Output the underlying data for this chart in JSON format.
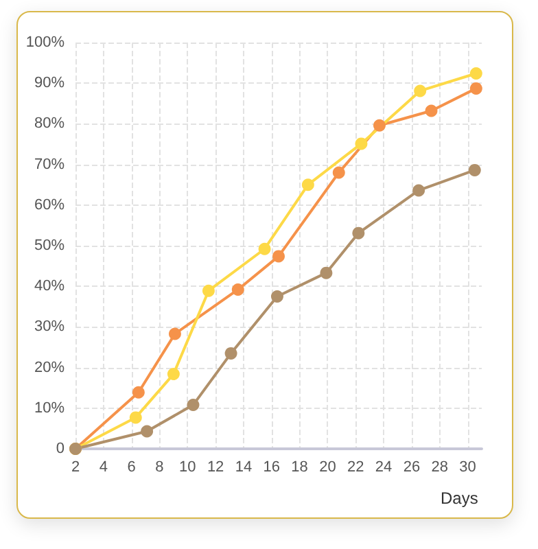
{
  "chart_data": {
    "type": "line",
    "xlabel": "Days",
    "xlim": [
      2,
      31
    ],
    "xticks": [
      2,
      4,
      6,
      8,
      10,
      12,
      14,
      16,
      18,
      20,
      22,
      24,
      26,
      28,
      30
    ],
    "ylim": [
      0,
      100
    ],
    "yticks": [
      {
        "value": 0,
        "label": "0"
      },
      {
        "value": 10,
        "label": "10%"
      },
      {
        "value": 20,
        "label": "20%"
      },
      {
        "value": 30,
        "label": "30%"
      },
      {
        "value": 40,
        "label": "40%"
      },
      {
        "value": 50,
        "label": "50%"
      },
      {
        "value": 60,
        "label": "60%"
      },
      {
        "value": 70,
        "label": "70%"
      },
      {
        "value": 80,
        "label": "80%"
      },
      {
        "value": 90,
        "label": "90%"
      },
      {
        "value": 100,
        "label": "100%"
      }
    ],
    "grid": true,
    "marker": "circle",
    "line_style": "solid",
    "series": [
      {
        "color": "#f5924a",
        "x": [
          2,
          6.5,
          9.1,
          13.6,
          16.5,
          20.8,
          23.7,
          27.4,
          30.6
        ],
        "values": [
          0,
          13.9,
          28.3,
          39.2,
          47.4,
          68.0,
          79.6,
          83.2,
          88.7
        ]
      },
      {
        "color": "#fdd947",
        "x": [
          2,
          6.3,
          9.0,
          11.5,
          15.5,
          18.6,
          22.4,
          26.6,
          30.6
        ],
        "values": [
          0,
          7.7,
          18.4,
          38.9,
          49.2,
          65.0,
          75.1,
          88.1,
          92.4
        ]
      },
      {
        "color": "#b0906a",
        "x": [
          2,
          7.1,
          10.4,
          13.1,
          16.4,
          19.9,
          22.2,
          26.5,
          30.5
        ],
        "values": [
          0,
          4.3,
          10.8,
          23.5,
          37.5,
          43.3,
          53.1,
          63.6,
          68.6
        ]
      }
    ]
  }
}
